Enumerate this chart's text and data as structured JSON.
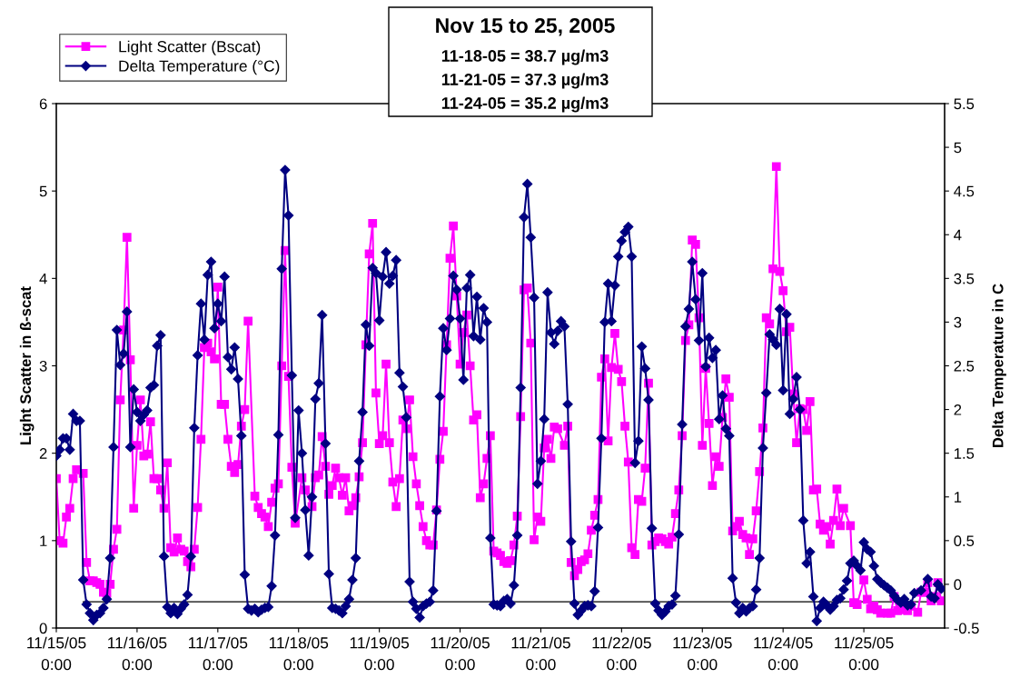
{
  "chart_data": {
    "type": "line",
    "title": "Nov 15 to 25, 2005",
    "annotations": [
      "11-18-05 = 38.7 µg/m3",
      "11-21-05 = 37.3 µg/m3",
      "11-24-05 = 35.2 µg/m3"
    ],
    "ylabel": "Light Scatter in ß-scat",
    "y2label": "Delta Temperature in C",
    "xlim": [
      "2005-11-15T00:00",
      "2005-11-26T00:00"
    ],
    "xticks": [
      {
        "value": "2005-11-15T00:00",
        "label": "11/15/05\n0:00"
      },
      {
        "value": "2005-11-16T00:00",
        "label": "11/16/05\n0:00"
      },
      {
        "value": "2005-11-17T00:00",
        "label": "11/17/05\n0:00"
      },
      {
        "value": "2005-11-18T00:00",
        "label": "11/18/05\n0:00"
      },
      {
        "value": "2005-11-19T00:00",
        "label": "11/19/05\n0:00"
      },
      {
        "value": "2005-11-20T00:00",
        "label": "11/20/05\n0:00"
      },
      {
        "value": "2005-11-21T00:00",
        "label": "11/21/05\n0:00"
      },
      {
        "value": "2005-11-22T00:00",
        "label": "11/22/05\n0:00"
      },
      {
        "value": "2005-11-23T00:00",
        "label": "11/23/05\n0:00"
      },
      {
        "value": "2005-11-24T00:00",
        "label": "11/24/05\n0:00"
      },
      {
        "value": "2005-11-25T00:00",
        "label": "11/25/05\n0:00"
      }
    ],
    "ylim": [
      0,
      6
    ],
    "yticks": [
      0,
      1,
      2,
      3,
      4,
      5,
      6
    ],
    "y2lim": [
      -0.5,
      5.5
    ],
    "y2ticks": [
      -0.5,
      0,
      0.5,
      1,
      1.5,
      2,
      2.5,
      3,
      3.5,
      4,
      4.5,
      5,
      5.5
    ],
    "legend": "top left",
    "line_style": "solid",
    "series": [
      {
        "name": "Light Scatter (Bscat)",
        "color": "#ff00ff",
        "marker": "square",
        "axis": "y",
        "x": [
          "2005-11-15T00:00",
          "2005-11-15T01:00",
          "2005-11-15T02:00",
          "2005-11-15T03:00",
          "2005-11-15T04:00",
          "2005-11-15T05:00",
          "2005-11-15T06:00",
          "2005-11-15T08:00",
          "2005-11-15T09:00",
          "2005-11-15T10:00",
          "2005-11-15T11:00",
          "2005-11-15T12:00",
          "2005-11-15T13:00",
          "2005-11-15T14:00",
          "2005-11-15T15:00",
          "2005-11-15T16:00",
          "2005-11-15T17:00",
          "2005-11-15T18:00",
          "2005-11-15T19:00",
          "2005-11-15T20:00",
          "2005-11-15T21:00",
          "2005-11-15T22:00",
          "2005-11-15T23:00",
          "2005-11-16T00:00",
          "2005-11-16T01:00",
          "2005-11-16T02:00",
          "2005-11-16T03:00",
          "2005-11-16T04:00",
          "2005-11-16T05:00",
          "2005-11-16T06:00",
          "2005-11-16T07:00",
          "2005-11-16T08:00",
          "2005-11-16T09:00",
          "2005-11-16T10:00",
          "2005-11-16T11:00",
          "2005-11-16T12:00",
          "2005-11-16T13:00",
          "2005-11-16T14:00",
          "2005-11-16T15:00",
          "2005-11-16T16:00",
          "2005-11-16T17:00",
          "2005-11-16T18:00",
          "2005-11-16T19:00",
          "2005-11-16T20:00",
          "2005-11-16T21:00",
          "2005-11-16T22:00",
          "2005-11-16T23:00",
          "2005-11-17T00:00",
          "2005-11-17T01:00",
          "2005-11-17T02:00",
          "2005-11-17T03:00",
          "2005-11-17T04:00",
          "2005-11-17T05:00",
          "2005-11-17T06:00",
          "2005-11-17T07:00",
          "2005-11-17T08:00",
          "2005-11-17T09:00",
          "2005-11-17T11:00",
          "2005-11-17T12:00",
          "2005-11-17T13:00",
          "2005-11-17T14:00",
          "2005-11-17T15:00",
          "2005-11-17T16:00",
          "2005-11-17T17:00",
          "2005-11-17T18:00",
          "2005-11-17T19:00",
          "2005-11-17T20:00",
          "2005-11-17T21:00",
          "2005-11-17T22:00",
          "2005-11-17T23:00",
          "2005-11-18T01:00",
          "2005-11-18T02:00",
          "2005-11-18T04:00",
          "2005-11-18T05:00",
          "2005-11-18T06:00",
          "2005-11-18T07:00",
          "2005-11-18T08:00",
          "2005-11-18T09:00",
          "2005-11-18T10:00",
          "2005-11-18T11:00",
          "2005-11-18T12:00",
          "2005-11-18T13:00",
          "2005-11-18T14:00",
          "2005-11-18T15:00",
          "2005-11-18T16:00",
          "2005-11-18T17:00",
          "2005-11-18T18:00",
          "2005-11-18T19:00",
          "2005-11-18T20:00",
          "2005-11-18T21:00",
          "2005-11-18T22:00",
          "2005-11-18T23:00",
          "2005-11-19T00:00",
          "2005-11-19T01:00",
          "2005-11-19T02:00",
          "2005-11-19T03:00",
          "2005-11-19T04:00",
          "2005-11-19T05:00",
          "2005-11-19T06:00",
          "2005-11-19T07:00",
          "2005-11-19T08:00",
          "2005-11-19T09:00",
          "2005-11-19T10:00",
          "2005-11-19T11:00",
          "2005-11-19T12:00",
          "2005-11-19T13:00",
          "2005-11-19T14:00",
          "2005-11-19T15:00",
          "2005-11-19T16:00",
          "2005-11-19T17:00",
          "2005-11-19T18:00",
          "2005-11-19T19:00",
          "2005-11-19T20:00",
          "2005-11-19T21:00",
          "2005-11-19T22:00",
          "2005-11-19T23:00",
          "2005-11-20T00:00",
          "2005-11-20T01:00",
          "2005-11-20T02:00",
          "2005-11-20T03:00",
          "2005-11-20T04:00",
          "2005-11-20T05:00",
          "2005-11-20T06:00",
          "2005-11-20T07:00",
          "2005-11-20T08:00",
          "2005-11-20T09:00",
          "2005-11-20T10:00",
          "2005-11-20T11:00",
          "2005-11-20T12:00",
          "2005-11-20T13:00",
          "2005-11-20T14:00",
          "2005-11-20T15:00",
          "2005-11-20T16:00",
          "2005-11-20T17:00",
          "2005-11-20T18:00",
          "2005-11-20T19:00",
          "2005-11-20T20:00",
          "2005-11-20T21:00",
          "2005-11-20T22:00",
          "2005-11-20T23:00",
          "2005-11-21T00:00",
          "2005-11-21T01:00",
          "2005-11-21T02:00",
          "2005-11-21T03:00",
          "2005-11-21T04:00",
          "2005-11-21T05:00",
          "2005-11-21T07:00",
          "2005-11-21T08:00",
          "2005-11-21T09:00",
          "2005-11-21T10:00",
          "2005-11-21T11:00",
          "2005-11-21T12:00",
          "2005-11-21T13:00",
          "2005-11-21T14:00",
          "2005-11-21T15:00",
          "2005-11-21T16:00",
          "2005-11-21T17:00",
          "2005-11-21T18:00",
          "2005-11-21T19:00",
          "2005-11-21T20:00",
          "2005-11-21T21:00",
          "2005-11-21T22:00",
          "2005-11-21T23:00",
          "2005-11-22T00:00",
          "2005-11-22T01:00",
          "2005-11-22T02:00",
          "2005-11-22T03:00",
          "2005-11-22T04:00",
          "2005-11-22T05:00",
          "2005-11-22T06:00",
          "2005-11-22T07:00",
          "2005-11-22T08:00",
          "2005-11-22T09:00",
          "2005-11-22T10:00",
          "2005-11-22T11:00",
          "2005-11-22T12:00",
          "2005-11-22T13:00",
          "2005-11-22T14:00",
          "2005-11-22T15:00",
          "2005-11-22T16:00",
          "2005-11-22T17:00",
          "2005-11-22T18:00",
          "2005-11-22T19:00",
          "2005-11-22T20:00",
          "2005-11-22T21:00",
          "2005-11-22T22:00",
          "2005-11-22T23:00",
          "2005-11-23T00:00",
          "2005-11-23T01:00",
          "2005-11-23T02:00",
          "2005-11-23T03:00",
          "2005-11-23T04:00",
          "2005-11-23T05:00",
          "2005-11-23T06:00",
          "2005-11-23T07:00",
          "2005-11-23T08:00",
          "2005-11-23T09:00",
          "2005-11-23T10:00",
          "2005-11-23T11:00",
          "2005-11-23T12:00",
          "2005-11-23T13:00",
          "2005-11-23T14:00",
          "2005-11-23T15:00",
          "2005-11-23T16:00",
          "2005-11-23T17:00",
          "2005-11-23T18:00",
          "2005-11-23T19:00",
          "2005-11-23T20:00",
          "2005-11-23T21:00",
          "2005-11-23T22:00",
          "2005-11-23T23:00",
          "2005-11-24T00:00",
          "2005-11-24T01:00",
          "2005-11-24T02:00",
          "2005-11-24T03:00",
          "2005-11-24T04:00",
          "2005-11-24T05:00",
          "2005-11-24T06:00",
          "2005-11-24T07:00",
          "2005-11-24T08:00",
          "2005-11-24T09:00",
          "2005-11-24T10:00",
          "2005-11-24T11:00",
          "2005-11-24T12:00",
          "2005-11-24T13:00",
          "2005-11-24T14:00",
          "2005-11-24T15:00",
          "2005-11-24T16:00",
          "2005-11-24T17:00",
          "2005-11-24T18:00",
          "2005-11-24T20:00",
          "2005-11-24T21:00",
          "2005-11-24T22:00",
          "2005-11-25T00:00",
          "2005-11-25T01:00",
          "2005-11-25T02:00",
          "2005-11-25T03:00",
          "2005-11-25T04:00",
          "2005-11-25T05:00",
          "2005-11-25T07:00",
          "2005-11-25T08:00",
          "2005-11-25T09:00",
          "2005-11-25T10:00",
          "2005-11-25T11:00",
          "2005-11-25T13:00",
          "2005-11-25T14:00",
          "2005-11-25T16:00",
          "2005-11-25T17:00",
          "2005-11-25T18:00",
          "2005-11-25T19:00",
          "2005-11-25T20:00",
          "2005-11-25T21:00",
          "2005-11-25T22:00",
          "2005-11-25T23:00"
        ],
        "values": [
          1.71,
          1.0,
          0.97,
          1.27,
          1.37,
          1.71,
          1.81,
          1.77,
          0.75,
          0.54,
          0.54,
          0.52,
          0.5,
          0.41,
          0.4,
          0.5,
          0.9,
          1.13,
          2.61,
          3.41,
          4.47,
          3.07,
          1.37,
          2.09,
          2.61,
          1.97,
          1.99,
          2.36,
          1.71,
          1.71,
          1.58,
          1.37,
          1.89,
          0.92,
          0.87,
          1.03,
          0.9,
          0.88,
          0.76,
          0.7,
          0.9,
          1.38,
          2.16,
          3.21,
          3.26,
          3.16,
          3.08,
          3.9,
          2.56,
          2.56,
          2.16,
          1.85,
          1.78,
          1.87,
          2.31,
          2.5,
          3.51,
          1.51,
          1.38,
          1.31,
          1.27,
          1.16,
          1.44,
          1.6,
          1.65,
          3.0,
          4.32,
          2.88,
          1.84,
          1.2,
          1.72,
          1.58,
          1.39,
          1.72,
          1.75,
          2.19,
          1.85,
          1.53,
          1.63,
          1.83,
          1.72,
          1.52,
          1.72,
          1.34,
          1.4,
          1.49,
          1.73,
          2.12,
          3.24,
          4.28,
          4.63,
          2.69,
          2.11,
          2.2,
          3.02,
          2.12,
          1.67,
          1.39,
          1.71,
          2.38,
          2.28,
          2.61,
          1.96,
          1.65,
          1.4,
          1.16,
          1.0,
          0.95,
          0.95,
          1.35,
          1.93,
          2.25,
          3.24,
          4.23,
          4.6,
          3.8,
          3.02,
          3.38,
          3.58,
          3.0,
          2.38,
          2.44,
          1.49,
          1.65,
          1.94,
          2.2,
          0.88,
          0.86,
          0.83,
          0.76,
          0.74,
          0.77,
          0.95,
          1.28,
          2.42,
          3.87,
          3.89,
          3.26,
          1.01,
          1.27,
          1.22,
          2.06,
          2.16,
          1.94,
          2.3,
          2.28,
          2.09,
          2.31,
          0.75,
          0.6,
          0.67,
          0.76,
          0.78,
          0.85,
          1.12,
          1.29,
          1.47,
          2.87,
          3.08,
          2.14,
          2.98,
          3.37,
          2.96,
          2.82,
          2.31,
          1.9,
          0.92,
          0.84,
          1.47,
          1.45,
          1.83,
          2.8,
          0.95,
          0.99,
          1.03,
          1.02,
          0.99,
          0.96,
          1.04,
          1.31,
          1.58,
          2.2,
          3.29,
          3.47,
          4.44,
          4.39,
          3.55,
          2.09,
          2.97,
          2.34,
          1.63,
          1.96,
          1.85,
          2.41,
          2.85,
          2.64,
          1.11,
          1.16,
          1.22,
          1.07,
          1.03,
          0.84,
          1.02,
          1.34,
          1.79,
          2.29,
          3.55,
          3.48,
          4.11,
          5.28,
          4.08,
          3.86,
          3.39,
          3.44,
          2.68,
          2.12,
          2.51,
          2.5,
          2.26,
          2.59,
          1.58,
          1.59,
          1.19,
          1.12,
          1.16,
          0.96,
          1.23,
          1.59,
          1.17,
          1.37,
          1.17,
          0.29,
          0.27,
          0.55,
          0.33,
          0.22,
          0.25,
          0.21,
          0.17,
          0.17,
          0.17,
          0.36,
          0.2,
          0.21,
          0.2,
          0.25,
          0.18,
          0.41,
          0.41,
          0.52,
          0.31,
          0.36,
          0.52,
          0.31
        ]
      },
      {
        "name": "Delta Temperature (°C)",
        "color": "#000080",
        "marker": "diamond",
        "axis": "y2",
        "x": [
          "2005-11-15T00:00",
          "2005-11-15T01:00",
          "2005-11-15T02:00",
          "2005-11-15T03:00",
          "2005-11-15T04:00",
          "2005-11-15T05:00",
          "2005-11-15T06:00",
          "2005-11-15T07:00",
          "2005-11-15T08:00",
          "2005-11-15T09:00",
          "2005-11-15T10:00",
          "2005-11-15T11:00",
          "2005-11-15T12:00",
          "2005-11-15T13:00",
          "2005-11-15T14:00",
          "2005-11-15T15:00",
          "2005-11-15T16:00",
          "2005-11-15T17:00",
          "2005-11-15T18:00",
          "2005-11-15T19:00",
          "2005-11-15T20:00",
          "2005-11-15T21:00",
          "2005-11-15T22:00",
          "2005-11-15T23:00",
          "2005-11-16T00:00",
          "2005-11-16T01:00",
          "2005-11-16T02:00",
          "2005-11-16T03:00",
          "2005-11-16T04:00",
          "2005-11-16T05:00",
          "2005-11-16T06:00",
          "2005-11-16T07:00",
          "2005-11-16T08:00",
          "2005-11-16T09:00",
          "2005-11-16T10:00",
          "2005-11-16T11:00",
          "2005-11-16T12:00",
          "2005-11-16T13:00",
          "2005-11-16T14:00",
          "2005-11-16T15:00",
          "2005-11-16T16:00",
          "2005-11-16T17:00",
          "2005-11-16T18:00",
          "2005-11-16T19:00",
          "2005-11-16T20:00",
          "2005-11-16T21:00",
          "2005-11-16T22:00",
          "2005-11-16T23:00",
          "2005-11-17T00:00",
          "2005-11-17T01:00",
          "2005-11-17T02:00",
          "2005-11-17T03:00",
          "2005-11-17T04:00",
          "2005-11-17T05:00",
          "2005-11-17T06:00",
          "2005-11-17T07:00",
          "2005-11-17T08:00",
          "2005-11-17T09:00",
          "2005-11-17T10:00",
          "2005-11-17T11:00",
          "2005-11-17T12:00",
          "2005-11-17T13:00",
          "2005-11-17T14:00",
          "2005-11-17T15:00",
          "2005-11-17T16:00",
          "2005-11-17T17:00",
          "2005-11-17T18:00",
          "2005-11-17T19:00",
          "2005-11-17T20:00",
          "2005-11-17T21:00",
          "2005-11-17T22:00",
          "2005-11-17T23:00",
          "2005-11-18T00:00",
          "2005-11-18T01:00",
          "2005-11-18T02:00",
          "2005-11-18T03:00",
          "2005-11-18T04:00",
          "2005-11-18T05:00",
          "2005-11-18T06:00",
          "2005-11-18T07:00",
          "2005-11-18T08:00",
          "2005-11-18T09:00",
          "2005-11-18T10:00",
          "2005-11-18T11:00",
          "2005-11-18T12:00",
          "2005-11-18T13:00",
          "2005-11-18T14:00",
          "2005-11-18T15:00",
          "2005-11-18T16:00",
          "2005-11-18T17:00",
          "2005-11-18T18:00",
          "2005-11-18T19:00",
          "2005-11-18T20:00",
          "2005-11-18T21:00",
          "2005-11-18T22:00",
          "2005-11-18T23:00",
          "2005-11-19T00:00",
          "2005-11-19T01:00",
          "2005-11-19T02:00",
          "2005-11-19T03:00",
          "2005-11-19T04:00",
          "2005-11-19T05:00",
          "2005-11-19T06:00",
          "2005-11-19T07:00",
          "2005-11-19T08:00",
          "2005-11-19T09:00",
          "2005-11-19T10:00",
          "2005-11-19T11:00",
          "2005-11-19T12:00",
          "2005-11-19T13:00",
          "2005-11-19T14:00",
          "2005-11-19T15:00",
          "2005-11-19T16:00",
          "2005-11-19T17:00",
          "2005-11-19T18:00",
          "2005-11-19T19:00",
          "2005-11-19T20:00",
          "2005-11-19T21:00",
          "2005-11-19T22:00",
          "2005-11-19T23:00",
          "2005-11-20T00:00",
          "2005-11-20T01:00",
          "2005-11-20T02:00",
          "2005-11-20T03:00",
          "2005-11-20T04:00",
          "2005-11-20T05:00",
          "2005-11-20T06:00",
          "2005-11-20T07:00",
          "2005-11-20T08:00",
          "2005-11-20T09:00",
          "2005-11-20T10:00",
          "2005-11-20T11:00",
          "2005-11-20T12:00",
          "2005-11-20T13:00",
          "2005-11-20T14:00",
          "2005-11-20T15:00",
          "2005-11-20T16:00",
          "2005-11-20T17:00",
          "2005-11-20T18:00",
          "2005-11-20T19:00",
          "2005-11-20T20:00",
          "2005-11-20T21:00",
          "2005-11-20T22:00",
          "2005-11-20T23:00",
          "2005-11-21T00:00",
          "2005-11-21T01:00",
          "2005-11-21T02:00",
          "2005-11-21T03:00",
          "2005-11-21T04:00",
          "2005-11-21T05:00",
          "2005-11-21T06:00",
          "2005-11-21T07:00",
          "2005-11-21T08:00",
          "2005-11-21T09:00",
          "2005-11-21T10:00",
          "2005-11-21T11:00",
          "2005-11-21T12:00",
          "2005-11-21T13:00",
          "2005-11-21T14:00",
          "2005-11-21T15:00",
          "2005-11-21T16:00",
          "2005-11-21T17:00",
          "2005-11-21T18:00",
          "2005-11-21T19:00",
          "2005-11-21T20:00",
          "2005-11-21T21:00",
          "2005-11-21T22:00",
          "2005-11-21T23:00",
          "2005-11-22T00:00",
          "2005-11-22T01:00",
          "2005-11-22T02:00",
          "2005-11-22T03:00",
          "2005-11-22T04:00",
          "2005-11-22T05:00",
          "2005-11-22T06:00",
          "2005-11-22T07:00",
          "2005-11-22T08:00",
          "2005-11-22T09:00",
          "2005-11-22T10:00",
          "2005-11-22T11:00",
          "2005-11-22T12:00",
          "2005-11-22T13:00",
          "2005-11-22T14:00",
          "2005-11-22T15:00",
          "2005-11-22T16:00",
          "2005-11-22T17:00",
          "2005-11-22T18:00",
          "2005-11-22T19:00",
          "2005-11-22T20:00",
          "2005-11-22T21:00",
          "2005-11-22T22:00",
          "2005-11-22T23:00",
          "2005-11-23T00:00",
          "2005-11-23T01:00",
          "2005-11-23T02:00",
          "2005-11-23T03:00",
          "2005-11-23T04:00",
          "2005-11-23T05:00",
          "2005-11-23T06:00",
          "2005-11-23T07:00",
          "2005-11-23T08:00",
          "2005-11-23T09:00",
          "2005-11-23T10:00",
          "2005-11-23T11:00",
          "2005-11-23T12:00",
          "2005-11-23T13:00",
          "2005-11-23T14:00",
          "2005-11-23T15:00",
          "2005-11-23T16:00",
          "2005-11-23T17:00",
          "2005-11-23T18:00",
          "2005-11-23T19:00",
          "2005-11-23T20:00",
          "2005-11-23T21:00",
          "2005-11-23T22:00",
          "2005-11-23T23:00",
          "2005-11-24T00:00",
          "2005-11-24T01:00",
          "2005-11-24T02:00",
          "2005-11-24T03:00",
          "2005-11-24T04:00",
          "2005-11-24T05:00",
          "2005-11-24T06:00",
          "2005-11-24T07:00",
          "2005-11-24T08:00",
          "2005-11-24T09:00",
          "2005-11-24T10:00",
          "2005-11-24T11:00",
          "2005-11-24T12:00",
          "2005-11-24T13:00",
          "2005-11-24T14:00",
          "2005-11-24T15:00",
          "2005-11-24T16:00",
          "2005-11-24T17:00",
          "2005-11-24T18:00",
          "2005-11-24T19:00",
          "2005-11-24T20:00",
          "2005-11-24T21:00",
          "2005-11-24T22:00",
          "2005-11-24T23:00",
          "2005-11-25T00:00",
          "2005-11-25T01:00",
          "2005-11-25T02:00",
          "2005-11-25T03:00",
          "2005-11-25T04:00",
          "2005-11-25T05:00",
          "2005-11-25T06:00",
          "2005-11-25T07:00",
          "2005-11-25T08:00",
          "2005-11-25T09:00",
          "2005-11-25T10:00",
          "2005-11-25T11:00",
          "2005-11-25T12:00",
          "2005-11-25T13:00",
          "2005-11-25T14:00",
          "2005-11-25T15:00",
          "2005-11-25T17:00",
          "2005-11-25T19:00",
          "2005-11-25T20:00",
          "2005-11-25T21:00",
          "2005-11-25T22:00",
          "2005-11-25T23:00"
        ],
        "values": [
          1.47,
          1.54,
          1.67,
          1.67,
          1.54,
          1.95,
          1.87,
          1.87,
          0.05,
          -0.23,
          -0.33,
          -0.41,
          -0.35,
          -0.33,
          -0.27,
          -0.17,
          0.3,
          1.57,
          2.91,
          2.51,
          2.64,
          3.12,
          1.57,
          2.23,
          1.97,
          1.87,
          1.94,
          1.99,
          2.25,
          2.28,
          2.73,
          2.85,
          0.32,
          -0.26,
          -0.33,
          -0.27,
          -0.34,
          -0.28,
          -0.23,
          -0.12,
          0.32,
          1.79,
          2.62,
          3.21,
          2.8,
          3.54,
          3.69,
          2.93,
          3.21,
          3.01,
          3.52,
          2.6,
          2.46,
          2.71,
          2.35,
          1.7,
          0.11,
          -0.28,
          -0.3,
          -0.28,
          -0.32,
          -0.29,
          -0.27,
          -0.26,
          -0.02,
          0.56,
          1.71,
          3.61,
          4.74,
          4.22,
          2.39,
          0.76,
          1.99,
          1.5,
          0.85,
          0.33,
          1.0,
          2.12,
          2.3,
          3.08,
          1.61,
          0.12,
          -0.27,
          -0.28,
          -0.3,
          -0.33,
          -0.25,
          -0.17,
          0.05,
          0.3,
          1.41,
          1.97,
          2.97,
          2.73,
          3.62,
          3.56,
          3.02,
          3.52,
          3.8,
          3.44,
          3.53,
          3.71,
          2.42,
          2.26,
          1.91,
          0.03,
          -0.2,
          -0.28,
          -0.38,
          -0.25,
          -0.22,
          -0.2,
          -0.07,
          0.84,
          2.15,
          2.93,
          2.68,
          3.04,
          3.53,
          3.37,
          3.04,
          2.34,
          3.39,
          3.54,
          2.84,
          3.29,
          2.8,
          3.16,
          3.0,
          0.53,
          -0.23,
          -0.24,
          -0.25,
          -0.19,
          -0.17,
          -0.22,
          -0.01,
          0.56,
          2.25,
          4.2,
          4.58,
          3.97,
          3.28,
          1.15,
          1.41,
          1.89,
          3.34,
          2.88,
          2.75,
          2.9,
          3.01,
          2.95,
          2.06,
          0.49,
          -0.22,
          -0.35,
          -0.3,
          -0.25,
          -0.24,
          -0.25,
          -0.08,
          0.65,
          1.67,
          3.0,
          3.44,
          3.01,
          3.42,
          3.75,
          3.93,
          4.03,
          4.09,
          3.75,
          1.39,
          1.64,
          2.72,
          2.47,
          2.11,
          0.64,
          -0.22,
          -0.3,
          -0.35,
          -0.31,
          -0.25,
          -0.23,
          -0.13,
          0.57,
          1.83,
          2.95,
          3.15,
          3.69,
          3.26,
          2.79,
          3.56,
          2.49,
          2.82,
          2.59,
          2.68,
          1.89,
          2.16,
          1.78,
          1.7,
          0.07,
          -0.21,
          -0.33,
          -0.27,
          -0.31,
          -0.27,
          -0.25,
          -0.06,
          0.3,
          1.56,
          2.19,
          2.86,
          2.8,
          2.74,
          3.15,
          2.22,
          3.09,
          1.95,
          2.12,
          2.37,
          2.0,
          0.73,
          0.24,
          0.37,
          -0.14,
          -0.42,
          -0.27,
          -0.2,
          -0.24,
          -0.29,
          -0.25,
          -0.18,
          -0.16,
          -0.06,
          0.04,
          0.24,
          0.27,
          0.21,
          0.16,
          0.48,
          0.4,
          0.37,
          0.21,
          0.06,
          0.02,
          -0.01,
          -0.04,
          -0.07,
          -0.13,
          -0.18,
          -0.21,
          -0.17,
          -0.24,
          -0.23,
          -0.1,
          -0.07,
          0.06,
          -0.14,
          -0.16,
          0.0,
          -0.05
        ]
      },
      {
        "color": "#000000",
        "marker": "none",
        "axis": "y",
        "x": [
          "2005-11-15T08:00",
          "2005-11-26T00:00"
        ],
        "values": [
          0.3,
          0.3
        ]
      }
    ]
  }
}
